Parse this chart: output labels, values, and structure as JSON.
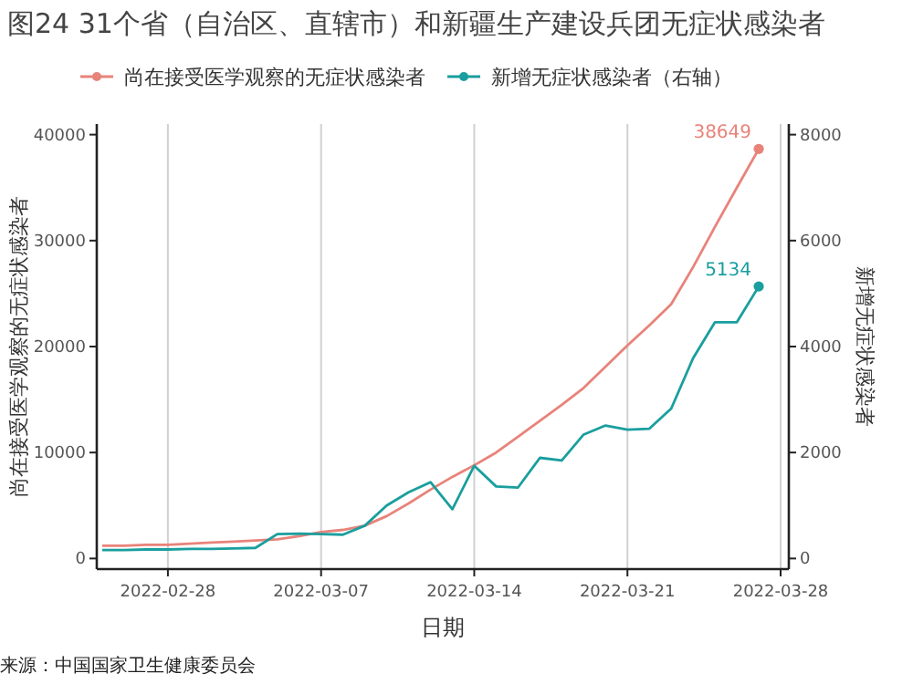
{
  "chart_data": {
    "type": "line",
    "title": "图24 31个省（自治区、直辖市）和新疆生产建设兵团无症状感染者",
    "xlabel": "日期",
    "ylabel": "尚在接受医学观察的无症状感染者",
    "y2label": "新增无症状感染者",
    "x": [
      "2022-02-25",
      "2022-02-26",
      "2022-02-27",
      "2022-02-28",
      "2022-03-01",
      "2022-03-02",
      "2022-03-03",
      "2022-03-04",
      "2022-03-05",
      "2022-03-06",
      "2022-03-07",
      "2022-03-08",
      "2022-03-09",
      "2022-03-10",
      "2022-03-11",
      "2022-03-12",
      "2022-03-13",
      "2022-03-14",
      "2022-03-15",
      "2022-03-16",
      "2022-03-17",
      "2022-03-18",
      "2022-03-19",
      "2022-03-20",
      "2022-03-21",
      "2022-03-22",
      "2022-03-23",
      "2022-03-24",
      "2022-03-25",
      "2022-03-26",
      "2022-03-27"
    ],
    "series": [
      {
        "name": "尚在接受医学观察的无症状感染者",
        "color": "#e8837a",
        "values": [
          1200,
          1200,
          1300,
          1300,
          1400,
          1500,
          1600,
          1700,
          1800,
          2100,
          2500,
          2700,
          3100,
          4000,
          5200,
          6500,
          7700,
          8800,
          10000,
          11500,
          13000,
          14500,
          16100,
          18100,
          20100,
          22000,
          24000,
          27500,
          31300,
          35000,
          38649
        ],
        "value_labels": [
          null,
          null,
          null,
          null,
          null,
          null,
          null,
          null,
          null,
          null,
          null,
          null,
          null,
          null,
          null,
          null,
          null,
          null,
          null,
          null,
          null,
          null,
          null,
          null,
          null,
          null,
          null,
          null,
          null,
          null,
          "38649"
        ]
      },
      {
        "name": "新增无症状感染者（右轴）",
        "color": "#1a9e9e",
        "axis": "y2",
        "values": [
          160,
          160,
          170,
          170,
          180,
          180,
          190,
          200,
          460,
          470,
          460,
          450,
          620,
          1000,
          1250,
          1440,
          930,
          1750,
          1360,
          1340,
          1900,
          1850,
          2340,
          2510,
          2430,
          2450,
          2830,
          3780,
          4460,
          4460,
          5134
        ],
        "value_labels": [
          null,
          null,
          null,
          null,
          null,
          null,
          null,
          null,
          null,
          null,
          null,
          null,
          null,
          null,
          null,
          null,
          null,
          null,
          null,
          null,
          null,
          null,
          null,
          null,
          null,
          null,
          null,
          null,
          null,
          null,
          "5134"
        ]
      }
    ],
    "xlim": [
      "2022-02-24T18:00",
      "2022-03-28T09:00"
    ],
    "xticks": [
      {
        "value": "2022-02-28",
        "label": "2022-02-28"
      },
      {
        "value": "2022-03-07",
        "label": "2022-03-07"
      },
      {
        "value": "2022-03-14",
        "label": "2022-03-14"
      },
      {
        "value": "2022-03-21",
        "label": "2022-03-21"
      },
      {
        "value": "2022-03-28",
        "label": "2022-03-28"
      }
    ],
    "ylim": [
      -1000,
      41000
    ],
    "yticks": [
      0,
      10000,
      20000,
      30000,
      40000
    ],
    "y2lim": [
      -200,
      8200
    ],
    "y2ticks": [
      0,
      2000,
      4000,
      6000,
      8000
    ],
    "grid": "x",
    "legend": "top",
    "line_style": "solid",
    "annotations": [
      "来源：中国国家卫生健康委员会"
    ]
  }
}
